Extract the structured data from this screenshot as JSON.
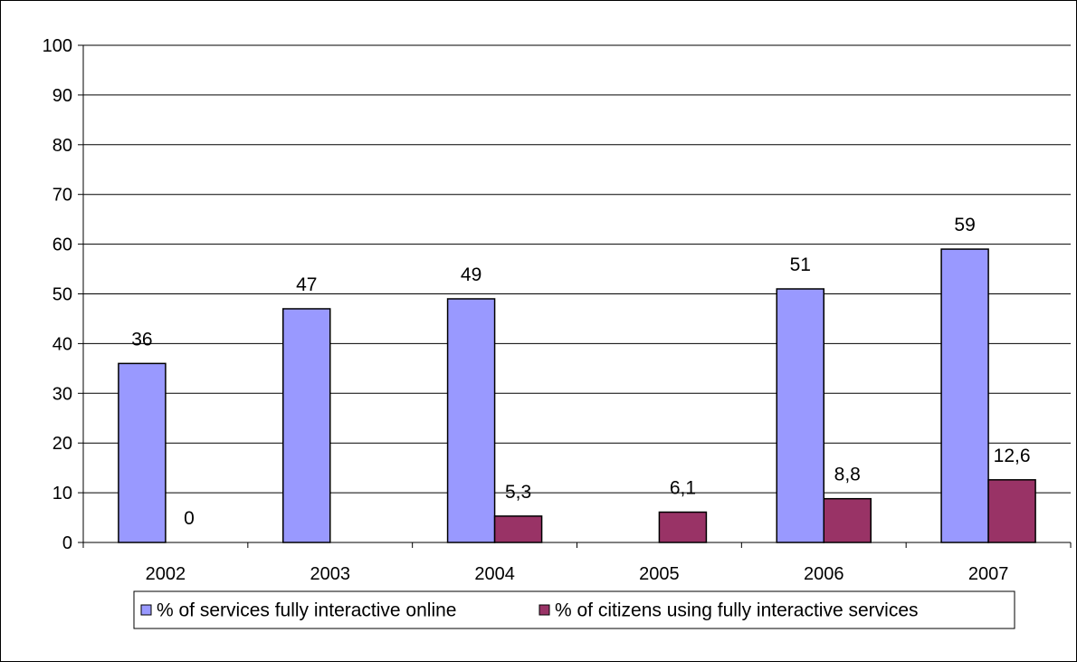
{
  "chart_data": {
    "type": "bar",
    "categories": [
      "2002",
      "2003",
      "2004",
      "2005",
      "2006",
      "2007"
    ],
    "series": [
      {
        "name": "% of services fully interactive online",
        "values": [
          36,
          47,
          49,
          null,
          51,
          59
        ],
        "labels": [
          "36",
          "47",
          "49",
          "",
          "51",
          "59"
        ],
        "color": "#9999FF"
      },
      {
        "name": "% of citizens using fully interactive services",
        "values": [
          0,
          null,
          5.3,
          6.1,
          8.8,
          12.6
        ],
        "labels": [
          "0",
          "",
          "5,3",
          "6,1",
          "8,8",
          "12,6"
        ],
        "color": "#993366"
      }
    ],
    "ylim": [
      0,
      100
    ],
    "yticks": [
      "0",
      "10",
      "20",
      "30",
      "40",
      "50",
      "60",
      "70",
      "80",
      "90",
      "100"
    ],
    "grid": true,
    "legend_position": "bottom",
    "xlabel": "",
    "ylabel": "",
    "title": ""
  }
}
